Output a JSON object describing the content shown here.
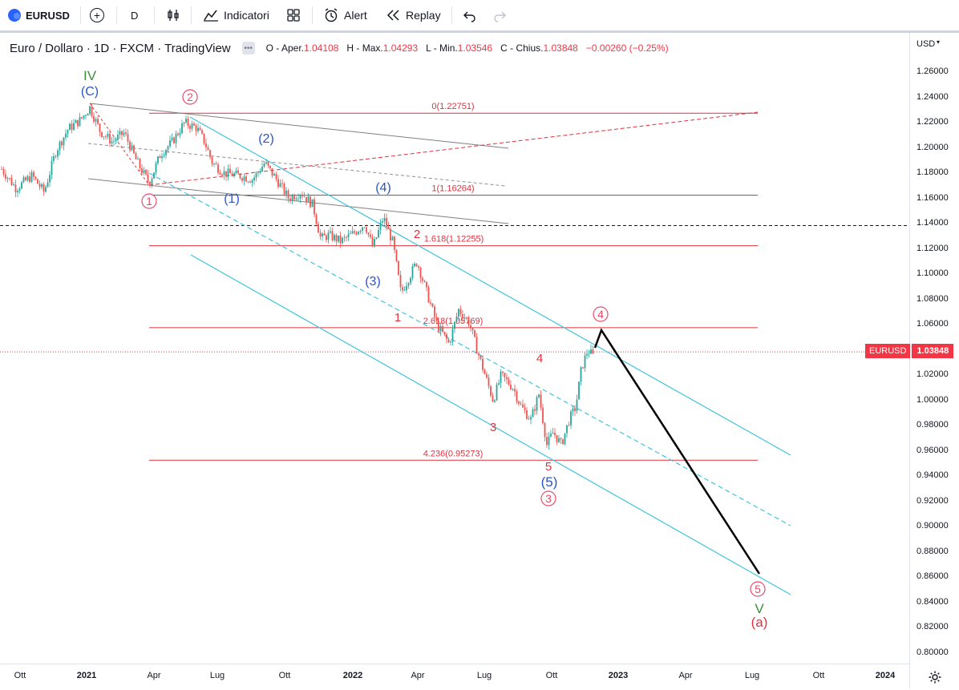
{
  "toolbar": {
    "symbol": "EURUSD",
    "interval": "D",
    "indicators_label": "Indicatori",
    "alert_label": "Alert",
    "replay_label": "Replay"
  },
  "legend": {
    "title": "Euro / Dollaro · 1D · FXCM · TradingView",
    "open_label": "O - Aper.",
    "open": "1.04108",
    "high_label": "H - Max.",
    "high": "1.04293",
    "low_label": "L - Min.",
    "low": "1.03546",
    "close_label": "C - Chius.",
    "close": "1.03848",
    "change": "−0.00260 (−0.25%)"
  },
  "price_axis": {
    "currency": "USD",
    "ticks": [
      "1.26000",
      "1.24000",
      "1.22000",
      "1.20000",
      "1.18000",
      "1.16000",
      "1.14000",
      "1.12000",
      "1.10000",
      "1.08000",
      "1.06000",
      "1.04000",
      "1.02000",
      "1.00000",
      "0.98000",
      "0.96000",
      "0.94000",
      "0.92000",
      "0.90000",
      "0.88000",
      "0.86000",
      "0.84000",
      "0.82000",
      "0.80000"
    ],
    "current_symbol": "EURUSD",
    "current_price": "1.03848"
  },
  "time_axis": {
    "ticks": [
      {
        "label": "Ott",
        "bold": false
      },
      {
        "label": "2021",
        "bold": true
      },
      {
        "label": "Apr",
        "bold": false
      },
      {
        "label": "Lug",
        "bold": false
      },
      {
        "label": "Ott",
        "bold": false
      },
      {
        "label": "2022",
        "bold": true
      },
      {
        "label": "Apr",
        "bold": false
      },
      {
        "label": "Lug",
        "bold": false
      },
      {
        "label": "Ott",
        "bold": false
      },
      {
        "label": "2023",
        "bold": true
      },
      {
        "label": "Apr",
        "bold": false
      },
      {
        "label": "Lug",
        "bold": false
      },
      {
        "label": "Ott",
        "bold": false
      },
      {
        "label": "2024",
        "bold": true
      }
    ]
  },
  "fib_levels": [
    {
      "label": "0(1.22751)",
      "price": 1.22751
    },
    {
      "label": "1(1.16264)",
      "price": 1.16264
    },
    {
      "label": "1.618(1.12255)",
      "price": 1.12255
    },
    {
      "label": "2.618(1.05769)",
      "price": 1.05769
    },
    {
      "label": "4.236(0.95273)",
      "price": 0.95273
    }
  ],
  "wave_labels": {
    "iv": "IV",
    "c": "(C)",
    "c1": "1",
    "c2": "2",
    "c3": "3",
    "c4": "4",
    "c5": "5",
    "b1": "(1)",
    "b2": "(2)",
    "b3": "(3)",
    "b4": "(4)",
    "b5": "(5)",
    "r1": "1",
    "r2": "2",
    "r3": "3",
    "r4": "4",
    "r5": "5",
    "v": "V",
    "a": "(a)"
  },
  "colors": {
    "fib": "#e0323e",
    "channel": "#3fc4dc",
    "trend": "#7b7b7b",
    "wave_red": "#e0323e",
    "wave_pink": "#e84c6b",
    "wave_blue": "#2b55c6",
    "wave_green": "#3c8f3c",
    "candle_up": "#26a69a",
    "candle_down": "#ef5350"
  }
}
